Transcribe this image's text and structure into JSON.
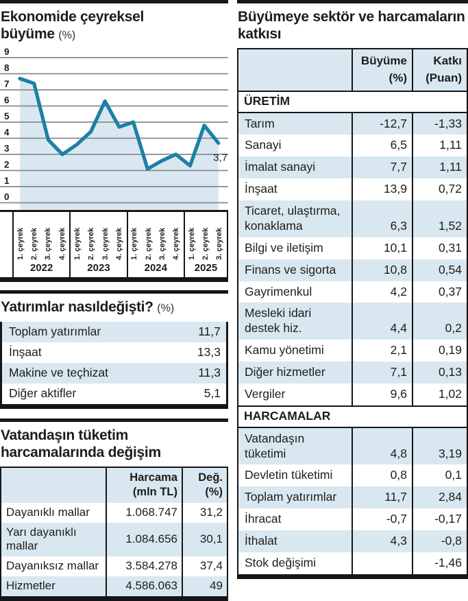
{
  "colors": {
    "line": "#1d80a5",
    "fill": "#d9e8f0",
    "grid": "#8a8a8a",
    "bar": "#161616",
    "text": "#1d1d1b",
    "row_shade": "#d9e8f0"
  },
  "chart_data": [
    {
      "id": "growth_chart",
      "type": "line",
      "title": "Ekonomide çeyreksel büyüme",
      "unit": "(%)",
      "ylabel": "",
      "xlabel": "",
      "ylim": [
        0,
        9
      ],
      "yticks": [
        9,
        8,
        7,
        6,
        5,
        4,
        3,
        2,
        1,
        0
      ],
      "grid": true,
      "x_groups": [
        {
          "year": "2022",
          "quarters": [
            "1. çeyrek",
            "2. çeyrek",
            "3. çeyrek",
            "4. çeyrek"
          ]
        },
        {
          "year": "2023",
          "quarters": [
            "1. çeyrek",
            "2. çeyrek",
            "3. çeyrek",
            "4. çeyrek"
          ]
        },
        {
          "year": "2024",
          "quarters": [
            "1. çeyrek",
            "2. çeyrek",
            "3. çeyrek",
            "4. çeyrek"
          ]
        },
        {
          "year": "2025",
          "quarters": [
            "1. çeyrek",
            "2. çeyrek",
            "3. çeyrek"
          ]
        }
      ],
      "values": [
        7.7,
        7.4,
        3.9,
        3.0,
        3.6,
        4.4,
        6.3,
        4.7,
        5.0,
        2.1,
        2.6,
        3.0,
        2.3,
        4.8,
        3.7
      ],
      "last_point_label": "3,7"
    },
    {
      "id": "investments",
      "type": "table",
      "title": "Yatırımlar nasıldeğişti?",
      "unit": "(%)",
      "rows": [
        {
          "label": "Toplam yatırımlar",
          "value": "11,7",
          "shaded": true
        },
        {
          "label": "İnşaat",
          "value": "13,3",
          "shaded": false
        },
        {
          "label": "Makine ve teçhizat",
          "value": "11,3",
          "shaded": true
        },
        {
          "label": "Diğer aktifler",
          "value": "5,1",
          "shaded": false
        }
      ]
    },
    {
      "id": "consumption",
      "type": "table",
      "title": "Vatandaşın tüketim harcamalarında değişim",
      "col_headers": [
        {
          "line1": "Harcama",
          "line2": "(mln TL)"
        },
        {
          "line1": "Değ.",
          "line2": "(%)"
        }
      ],
      "rows": [
        {
          "label": "Dayanıklı mallar",
          "amount": "1.068.747",
          "pct": "31,2",
          "shaded": false
        },
        {
          "label": "Yarı dayanıklı mallar",
          "amount": "1.084.656",
          "pct": "30,1",
          "shaded": true
        },
        {
          "label": "Dayanıksız mallar",
          "amount": "3.584.278",
          "pct": "37,4",
          "shaded": false
        },
        {
          "label": "Hizmetler",
          "amount": "4.586.063",
          "pct": "49",
          "shaded": true
        }
      ]
    },
    {
      "id": "contributions",
      "type": "table",
      "title": "Büyümeye sektör ve harcamaların katkısı",
      "col_headers": [
        {
          "line1": "Büyüme",
          "line2": "(%)"
        },
        {
          "line1": "Katkı",
          "line2": "(Puan)"
        }
      ],
      "sections": [
        {
          "header": "ÜRETİM",
          "rows": [
            {
              "label": "Tarım",
              "growth": "-12,7",
              "contrib": "-1,33",
              "shaded": true
            },
            {
              "label": "Sanayi",
              "growth": "6,5",
              "contrib": "1,11",
              "shaded": false
            },
            {
              "label": "İmalat sanayi",
              "growth": "7,7",
              "contrib": "1,11",
              "shaded": true
            },
            {
              "label": "İnşaat",
              "growth": "13,9",
              "contrib": "0,72",
              "shaded": false
            },
            {
              "label": "Ticaret, ulaştırma,",
              "label2": "konaklama",
              "growth": "6,3",
              "contrib": "1,52",
              "shaded": true
            },
            {
              "label": "Bilgi ve iletişim",
              "growth": "10,1",
              "contrib": "0,31",
              "shaded": false
            },
            {
              "label": "Finans ve sigorta",
              "growth": "10,8",
              "contrib": "0,54",
              "shaded": true
            },
            {
              "label": "Gayrimenkul",
              "growth": "4,2",
              "contrib": "0,37",
              "shaded": false
            },
            {
              "label": "Mesleki idari",
              "label2": "destek hiz.",
              "growth": "4,4",
              "contrib": "0,2",
              "shaded": true
            },
            {
              "label": "Kamu yönetimi",
              "growth": "2,1",
              "contrib": "0,19",
              "shaded": false
            },
            {
              "label": "Diğer hizmetler",
              "growth": "7,1",
              "contrib": "0,13",
              "shaded": true
            },
            {
              "label": "Vergiler",
              "growth": "9,6",
              "contrib": "1,02",
              "shaded": false
            }
          ]
        },
        {
          "header": "HARCAMALAR",
          "rows": [
            {
              "label": "Vatandaşın tüketimi",
              "growth": "4,8",
              "contrib": "3,19",
              "shaded": true
            },
            {
              "label": "Devletin tüketimi",
              "growth": "0,8",
              "contrib": "0,1",
              "shaded": false
            },
            {
              "label": "Toplam yatırımlar",
              "growth": "11,7",
              "contrib": "2,84",
              "shaded": true
            },
            {
              "label": "İhracat",
              "growth": "-0,7",
              "contrib": "-0,17",
              "shaded": false
            },
            {
              "label": "İthalat",
              "growth": "4,3",
              "contrib": "-0,8",
              "shaded": true
            },
            {
              "label": "Stok değişimi",
              "growth": "",
              "contrib": "-1,46",
              "shaded": false
            }
          ]
        }
      ]
    }
  ]
}
